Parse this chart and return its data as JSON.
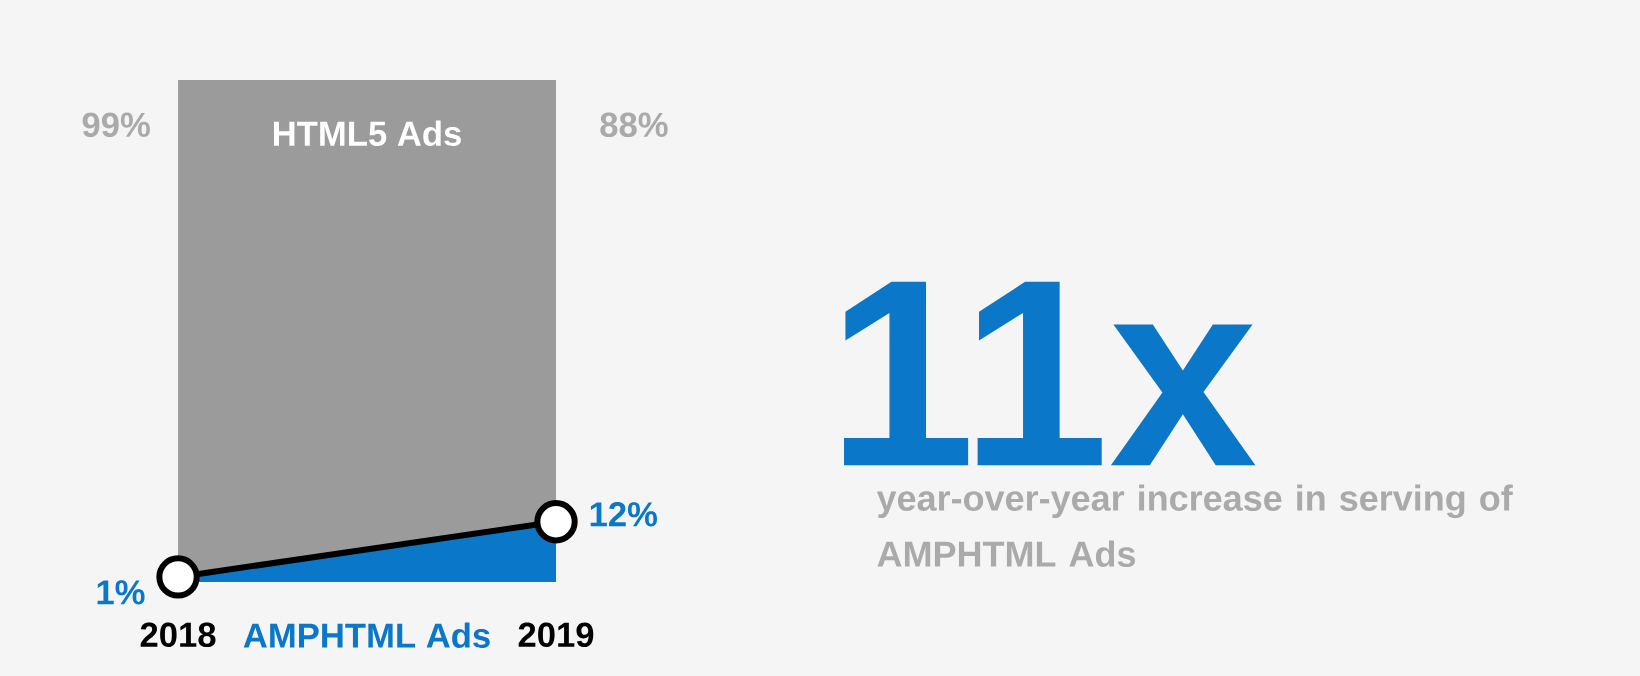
{
  "chart_data": {
    "type": "area",
    "stacked": true,
    "categories": [
      "2018",
      "2019"
    ],
    "series": [
      {
        "name": "AMPHTML Ads",
        "color": "#0a77c9",
        "marker": "circle",
        "values": [
          1,
          12
        ],
        "value_labels": [
          "1%",
          "12%"
        ]
      },
      {
        "name": "HTML5 Ads",
        "color": "#9b9b9b",
        "values": [
          99,
          88
        ],
        "value_labels": [
          "99%",
          "88%"
        ]
      }
    ],
    "annotations": [
      "11x",
      "year-over-year increase in serving of AMPHTML Ads"
    ]
  }
}
